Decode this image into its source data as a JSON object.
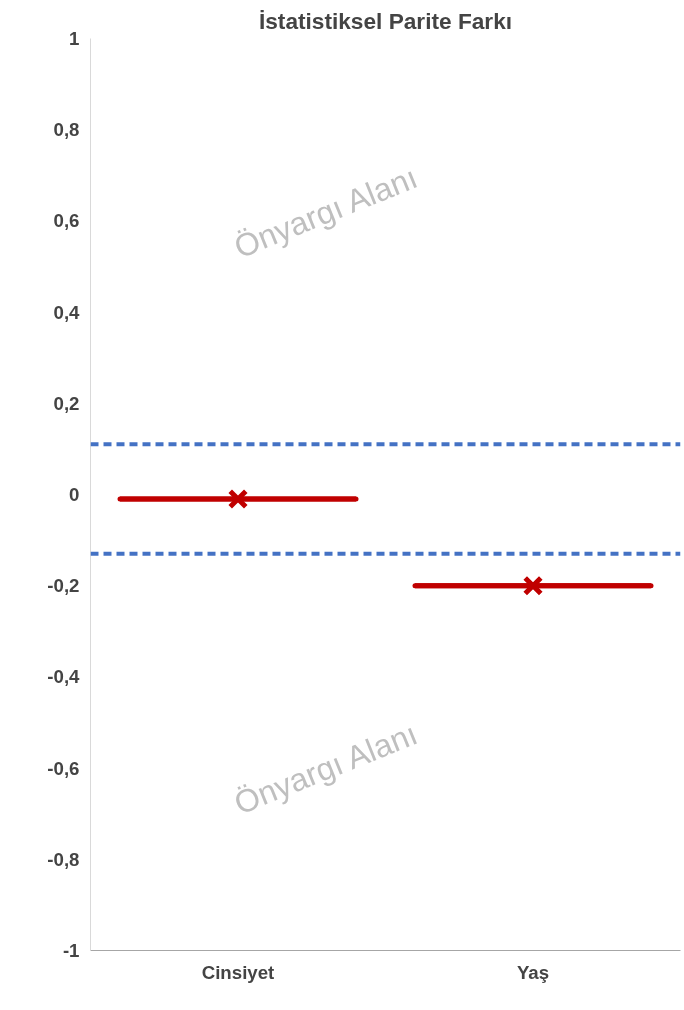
{
  "chart_data": {
    "title": "İstatistiksel Parite Farkı",
    "categories": [
      "Cinsiyet",
      "Yaş"
    ],
    "type": "box",
    "series": [
      {
        "color": "#c00000",
        "boxes": [
          {
            "low": -0.01,
            "q1": -0.01,
            "median": -0.01,
            "q3": -0.01,
            "high": -0.01,
            "mean": -0.01
          },
          {
            "low": -0.2,
            "q1": -0.2,
            "median": -0.2,
            "q3": -0.2,
            "high": -0.2,
            "mean": -0.2
          }
        ]
      }
    ],
    "ylim": [
      -1,
      1
    ],
    "yticks": [
      {
        "value": -1,
        "label": "-1"
      },
      {
        "value": -0.8,
        "label": "-0,8"
      },
      {
        "value": -0.6,
        "label": "-0,6"
      },
      {
        "value": -0.4,
        "label": "-0,4"
      },
      {
        "value": -0.2,
        "label": "-0,2"
      },
      {
        "value": 0,
        "label": "0"
      },
      {
        "value": 0.2,
        "label": "0,2"
      },
      {
        "value": 0.4,
        "label": "0,4"
      },
      {
        "value": 0.6,
        "label": "0,6"
      },
      {
        "value": 0.8,
        "label": "0,8"
      },
      {
        "value": 1,
        "label": "1"
      }
    ],
    "ref_lines": [
      {
        "axis": "y",
        "value": 0.11,
        "color": "#4472c4",
        "line_style": "dashed"
      },
      {
        "axis": "y",
        "value": -0.13,
        "color": "#4472c4",
        "line_style": "dashed"
      }
    ],
    "annotations": [
      "Önyargı Alanı",
      "Önyargı Alanı"
    ],
    "grid": false
  }
}
